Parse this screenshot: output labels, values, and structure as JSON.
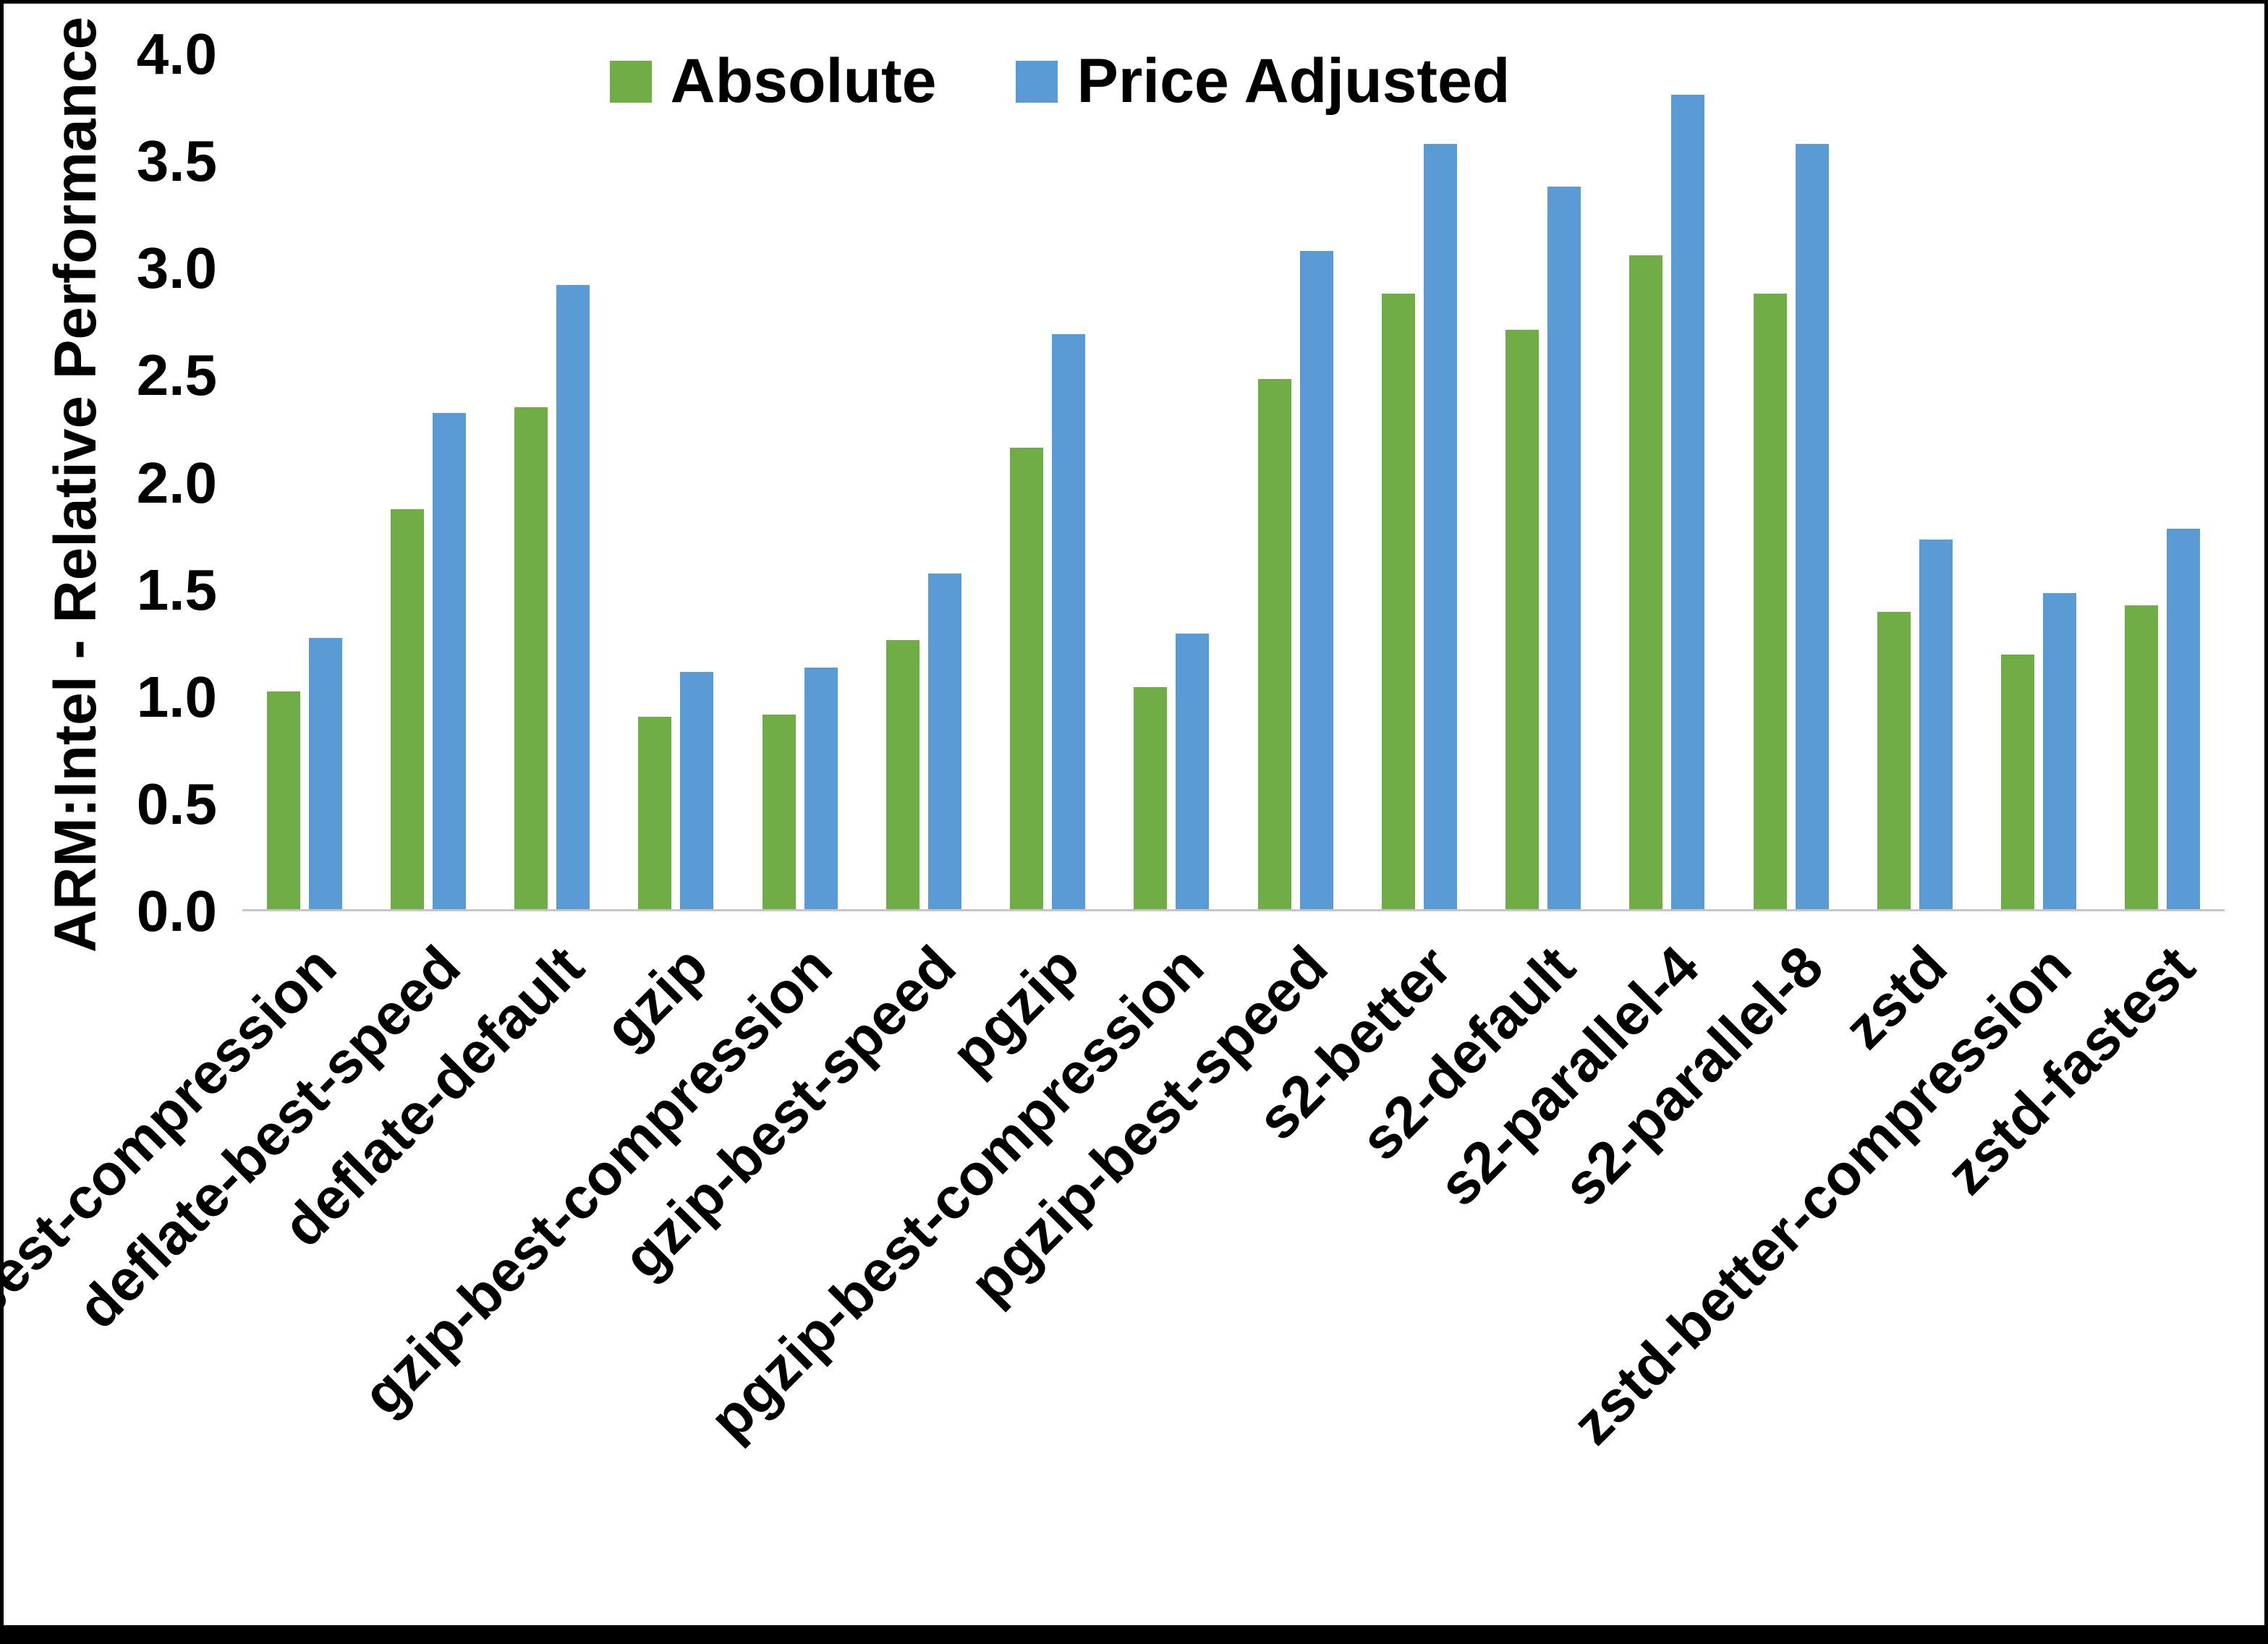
{
  "chart_data": {
    "type": "bar",
    "title": "",
    "xlabel": "",
    "ylabel": "ARM:Intel - Relative Performance",
    "ylim": [
      0,
      4.0
    ],
    "yticks": [
      0.0,
      0.5,
      1.0,
      1.5,
      2.0,
      2.5,
      3.0,
      3.5,
      4.0
    ],
    "ytick_labels": [
      "0.0",
      "0.5",
      "1.0",
      "1.5",
      "2.0",
      "2.5",
      "3.0",
      "3.5",
      "4.0"
    ],
    "grid": false,
    "legend_position": "top-center",
    "categories": [
      "deflate-best-compression",
      "deflate-best-speed",
      "deflate-default",
      "gzip",
      "gzip-best-compression",
      "gzip-best-speed",
      "pgzip",
      "pgzip-best-compression",
      "pgzip-best-speed",
      "s2-better",
      "s2-default",
      "s2-parallel-4",
      "s2-parallel-8",
      "zstd",
      "zstd-better-compression",
      "zstd-fastest"
    ],
    "series": [
      {
        "name": "Absolute",
        "color": "#70AD47",
        "values": [
          1.02,
          1.87,
          2.35,
          0.9,
          0.91,
          1.26,
          2.16,
          1.04,
          2.48,
          2.88,
          2.71,
          3.06,
          2.88,
          1.39,
          1.19,
          1.42
        ]
      },
      {
        "name": "Price Adjusted",
        "color": "#5B9BD5",
        "values": [
          1.27,
          2.32,
          2.92,
          1.11,
          1.13,
          1.57,
          2.69,
          1.29,
          3.08,
          3.58,
          3.38,
          3.81,
          3.58,
          1.73,
          1.48,
          1.78
        ]
      }
    ]
  },
  "colors": {
    "axis_line": "#c6c6c6",
    "text": "#000000",
    "frame": "#000000"
  }
}
